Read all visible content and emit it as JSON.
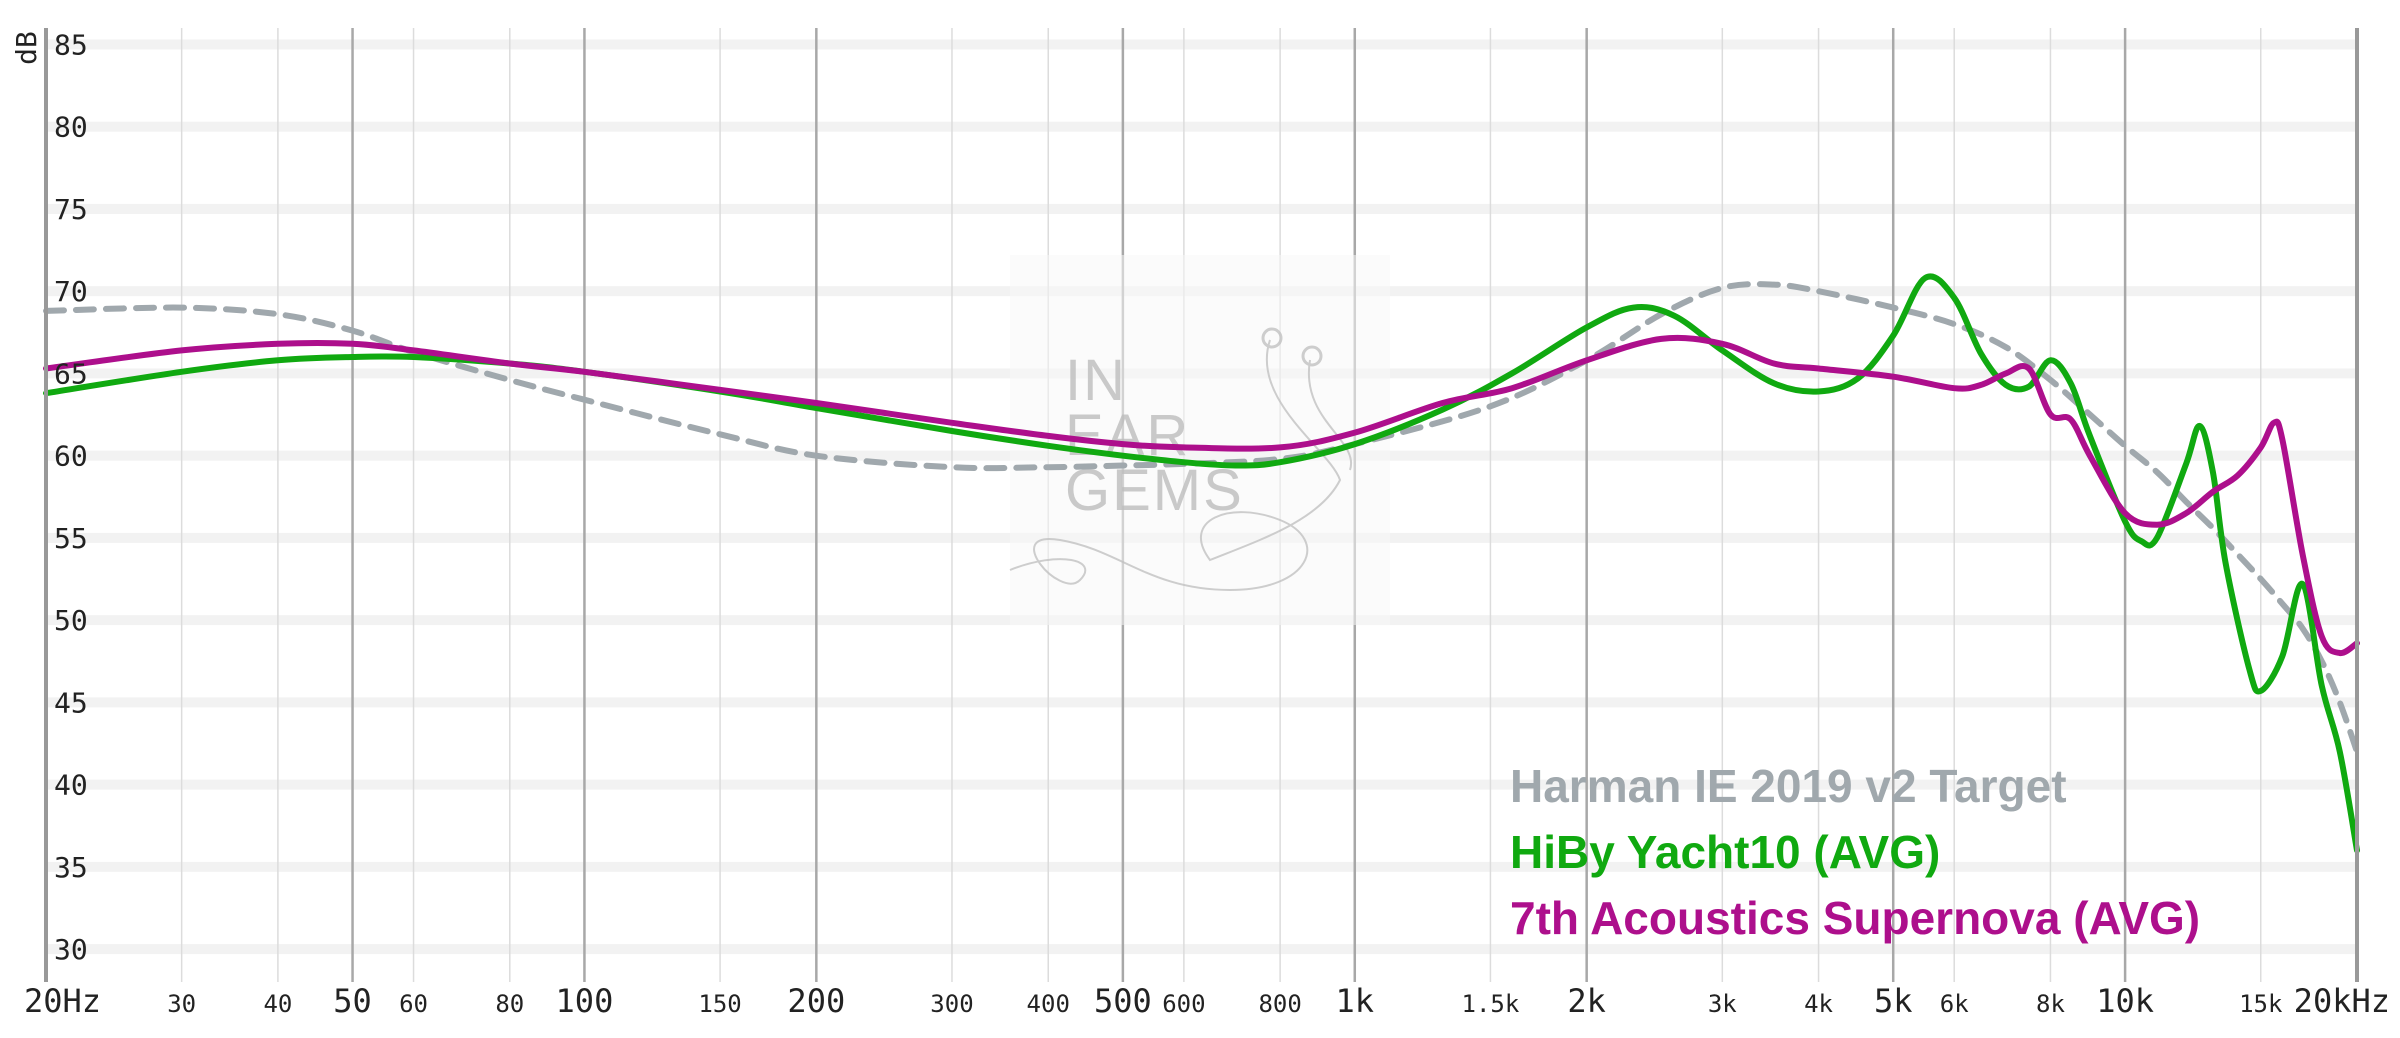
{
  "chart_data": {
    "type": "line",
    "xscale": "log",
    "xlim": [
      20,
      20000
    ],
    "ylim": [
      28,
      86
    ],
    "ylabel": "dB",
    "grid": true,
    "legend_position": "bottom-right",
    "y_ticks": [
      "85",
      "80",
      "75",
      "70",
      "65",
      "60",
      "55",
      "50",
      "45",
      "40",
      "35",
      "30"
    ],
    "x_ticks": [
      {
        "label": "20Hz",
        "f": 20,
        "major": true
      },
      {
        "label": "30",
        "f": 30,
        "major": false
      },
      {
        "label": "40",
        "f": 40,
        "major": false
      },
      {
        "label": "50",
        "f": 50,
        "major": true
      },
      {
        "label": "60",
        "f": 60,
        "major": false
      },
      {
        "label": "80",
        "f": 80,
        "major": false
      },
      {
        "label": "100",
        "f": 100,
        "major": true
      },
      {
        "label": "150",
        "f": 150,
        "major": false
      },
      {
        "label": "200",
        "f": 200,
        "major": true
      },
      {
        "label": "300",
        "f": 300,
        "major": false
      },
      {
        "label": "400",
        "f": 400,
        "major": false
      },
      {
        "label": "500",
        "f": 500,
        "major": true
      },
      {
        "label": "600",
        "f": 600,
        "major": false
      },
      {
        "label": "800",
        "f": 800,
        "major": false
      },
      {
        "label": "1k",
        "f": 1000,
        "major": true
      },
      {
        "label": "1.5k",
        "f": 1500,
        "major": false
      },
      {
        "label": "2k",
        "f": 2000,
        "major": true
      },
      {
        "label": "3k",
        "f": 3000,
        "major": false
      },
      {
        "label": "4k",
        "f": 4000,
        "major": false
      },
      {
        "label": "5k",
        "f": 5000,
        "major": true
      },
      {
        "label": "6k",
        "f": 6000,
        "major": false
      },
      {
        "label": "8k",
        "f": 8000,
        "major": false
      },
      {
        "label": "10k",
        "f": 10000,
        "major": true
      },
      {
        "label": "15k",
        "f": 15000,
        "major": false
      },
      {
        "label": "20kHz",
        "f": 20000,
        "major": true
      }
    ],
    "series": [
      {
        "name": "Harman IE 2019 v2 Target",
        "color": "#a0a8ad",
        "dashed": true,
        "points": [
          [
            20,
            68.8
          ],
          [
            30,
            69
          ],
          [
            40,
            68.6
          ],
          [
            50,
            67.6
          ],
          [
            60,
            66.3
          ],
          [
            80,
            64.6
          ],
          [
            100,
            63.4
          ],
          [
            150,
            61.3
          ],
          [
            200,
            60
          ],
          [
            300,
            59.3
          ],
          [
            400,
            59.3
          ],
          [
            500,
            59.4
          ],
          [
            600,
            59.5
          ],
          [
            800,
            59.8
          ],
          [
            1000,
            60.7
          ],
          [
            1500,
            63
          ],
          [
            2000,
            65.8
          ],
          [
            2500,
            68.6
          ],
          [
            3000,
            70.2
          ],
          [
            3500,
            70.4
          ],
          [
            4000,
            70
          ],
          [
            5000,
            69
          ],
          [
            6000,
            68
          ],
          [
            7000,
            66.6
          ],
          [
            8000,
            64.6
          ],
          [
            9000,
            62.5
          ],
          [
            10000,
            60.6
          ],
          [
            11000,
            59
          ],
          [
            12000,
            57.2
          ],
          [
            13000,
            55.6
          ],
          [
            14000,
            54
          ],
          [
            15000,
            52.5
          ],
          [
            16000,
            51
          ],
          [
            17000,
            49.5
          ],
          [
            18000,
            47.5
          ],
          [
            19000,
            45
          ],
          [
            20000,
            42
          ]
        ]
      },
      {
        "name": "HiBy Yacht10 (AVG)",
        "color": "#10a910",
        "dashed": false,
        "points": [
          [
            20,
            63.8
          ],
          [
            30,
            65.1
          ],
          [
            40,
            65.8
          ],
          [
            50,
            66
          ],
          [
            60,
            66
          ],
          [
            80,
            65.6
          ],
          [
            100,
            65.1
          ],
          [
            150,
            63.9
          ],
          [
            200,
            62.9
          ],
          [
            300,
            61.5
          ],
          [
            400,
            60.6
          ],
          [
            500,
            60
          ],
          [
            600,
            59.6
          ],
          [
            700,
            59.4
          ],
          [
            800,
            59.6
          ],
          [
            1000,
            60.7
          ],
          [
            1300,
            62.8
          ],
          [
            1600,
            65
          ],
          [
            2000,
            67.8
          ],
          [
            2300,
            69
          ],
          [
            2600,
            68.5
          ],
          [
            3000,
            66.4
          ],
          [
            3500,
            64.4
          ],
          [
            4000,
            63.9
          ],
          [
            4500,
            64.7
          ],
          [
            5000,
            67.3
          ],
          [
            5500,
            70.8
          ],
          [
            6000,
            69.6
          ],
          [
            6500,
            66.2
          ],
          [
            7000,
            64.3
          ],
          [
            7500,
            64.2
          ],
          [
            8000,
            65.8
          ],
          [
            8500,
            64.4
          ],
          [
            9000,
            61.2
          ],
          [
            10000,
            56
          ],
          [
            10500,
            54.8
          ],
          [
            11000,
            55
          ],
          [
            12000,
            59.5
          ],
          [
            12500,
            61.8
          ],
          [
            13000,
            59
          ],
          [
            13500,
            53.5
          ],
          [
            14500,
            47
          ],
          [
            15000,
            45.7
          ],
          [
            16000,
            47.8
          ],
          [
            17000,
            52.2
          ],
          [
            18000,
            46
          ],
          [
            19000,
            42
          ],
          [
            20000,
            36
          ]
        ]
      },
      {
        "name": "7th Acoustics Supernova (AVG)",
        "color": "#ad0f8c",
        "dashed": false,
        "points": [
          [
            20,
            65.3
          ],
          [
            30,
            66.4
          ],
          [
            40,
            66.8
          ],
          [
            50,
            66.8
          ],
          [
            60,
            66.4
          ],
          [
            80,
            65.6
          ],
          [
            100,
            65.1
          ],
          [
            150,
            64
          ],
          [
            200,
            63.2
          ],
          [
            300,
            62
          ],
          [
            400,
            61.2
          ],
          [
            500,
            60.7
          ],
          [
            600,
            60.5
          ],
          [
            800,
            60.5
          ],
          [
            1000,
            61.4
          ],
          [
            1300,
            63.2
          ],
          [
            1600,
            64.1
          ],
          [
            2000,
            65.8
          ],
          [
            2500,
            67.1
          ],
          [
            3000,
            66.8
          ],
          [
            3500,
            65.6
          ],
          [
            4000,
            65.3
          ],
          [
            5000,
            64.8
          ],
          [
            6000,
            64.1
          ],
          [
            6500,
            64.3
          ],
          [
            7000,
            65
          ],
          [
            7500,
            65.3
          ],
          [
            8000,
            62.5
          ],
          [
            8500,
            62.2
          ],
          [
            9000,
            60
          ],
          [
            10000,
            56.5
          ],
          [
            11000,
            55.8
          ],
          [
            12000,
            56.5
          ],
          [
            13000,
            57.8
          ],
          [
            14000,
            58.8
          ],
          [
            15000,
            60.5
          ],
          [
            15600,
            62
          ],
          [
            16000,
            61
          ],
          [
            17000,
            54
          ],
          [
            18000,
            49
          ],
          [
            19000,
            48
          ],
          [
            20000,
            48.6
          ]
        ]
      }
    ]
  },
  "watermark": {
    "line1": "IN",
    "line2": "EAR",
    "line3": "GEMS"
  }
}
